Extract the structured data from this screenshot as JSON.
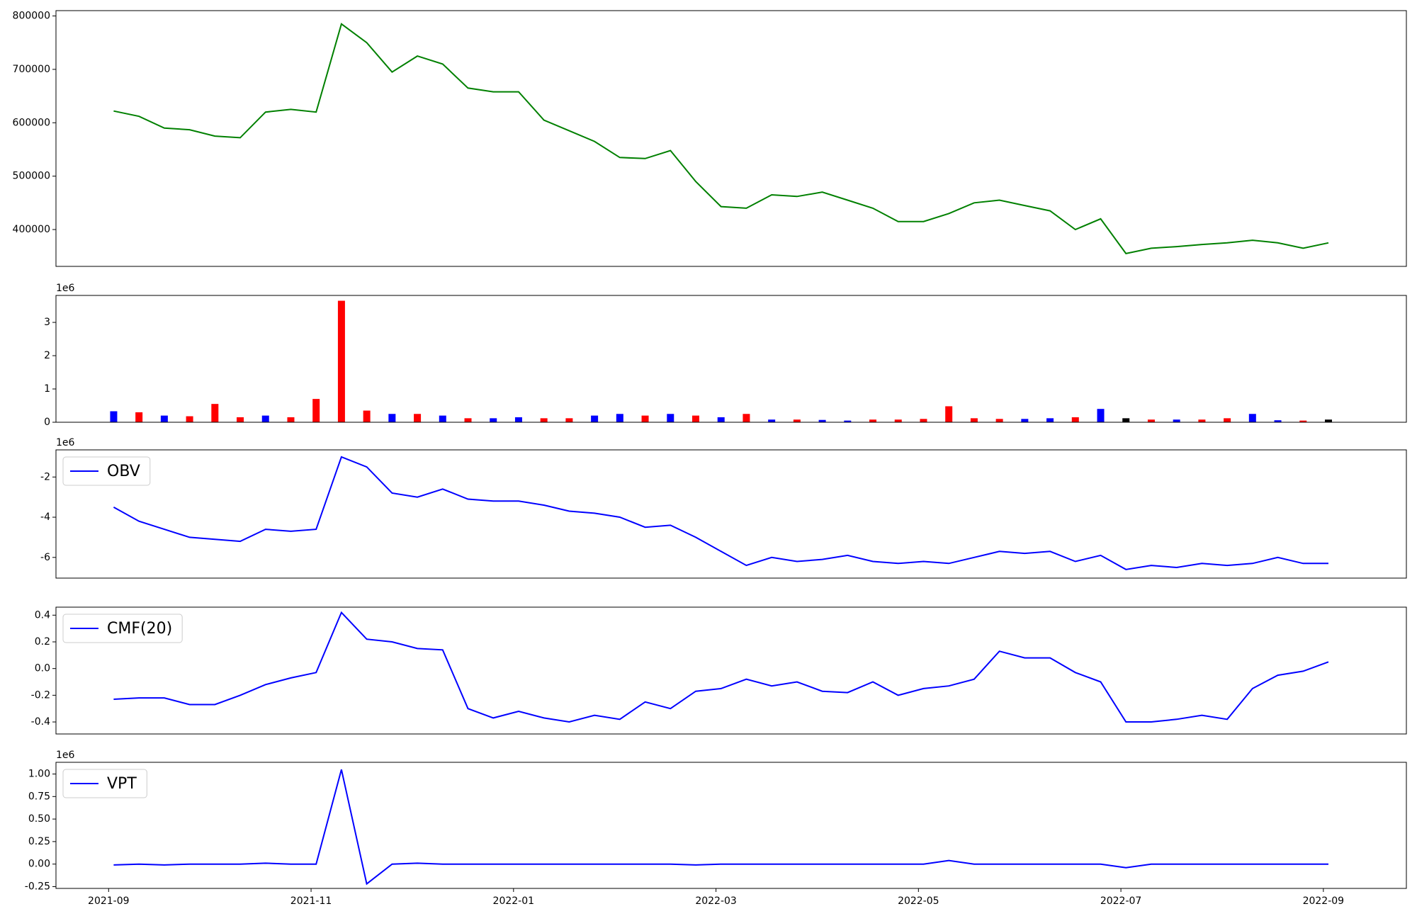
{
  "chart_data": [
    {
      "type": "line",
      "color": "#008000",
      "x": [
        0.05,
        0.3,
        0.55,
        0.8,
        1.05,
        1.3,
        1.55,
        1.8,
        2.05,
        2.3,
        2.55,
        2.8,
        3.05,
        3.3,
        3.55,
        3.8,
        4.05,
        4.3,
        4.55,
        4.8,
        5.05,
        5.3,
        5.55,
        5.8,
        6.05,
        6.3,
        6.55,
        6.8,
        7.05,
        7.3,
        7.55,
        7.8,
        8.05,
        8.3,
        8.55,
        8.8,
        9.05,
        9.3,
        9.55,
        9.8,
        10.05,
        10.3,
        10.55,
        10.8,
        11.05,
        11.3,
        11.55,
        11.8,
        12.05
      ],
      "values": [
        622000,
        612000,
        590000,
        587000,
        575000,
        572000,
        620000,
        625000,
        620000,
        785000,
        750000,
        695000,
        725000,
        710000,
        665000,
        658000,
        658000,
        605000,
        585000,
        565000,
        535000,
        533000,
        548000,
        490000,
        443000,
        440000,
        465000,
        462000,
        470000,
        455000,
        440000,
        415000,
        415000,
        430000,
        450000,
        455000,
        445000,
        435000,
        400000,
        420000,
        355000,
        365000,
        368000,
        372000,
        375000,
        380000,
        375000,
        365000,
        375000
      ],
      "xlim": [
        -0.52,
        12.82
      ],
      "ylim": [
        331000,
        810000
      ],
      "yticks": [
        400000,
        500000,
        600000,
        700000,
        800000
      ]
    },
    {
      "type": "bar",
      "y_offset_label": "1e6",
      "x": [
        0.05,
        0.3,
        0.55,
        0.8,
        1.05,
        1.3,
        1.55,
        1.8,
        2.05,
        2.3,
        2.55,
        2.8,
        3.05,
        3.3,
        3.55,
        3.8,
        4.05,
        4.3,
        4.55,
        4.8,
        5.05,
        5.3,
        5.55,
        5.8,
        6.05,
        6.3,
        6.55,
        6.8,
        7.05,
        7.3,
        7.55,
        7.8,
        8.05,
        8.3,
        8.55,
        8.8,
        9.05,
        9.3,
        9.55,
        9.8,
        10.05,
        10.3,
        10.55,
        10.8,
        11.05,
        11.3,
        11.55,
        11.8,
        12.05
      ],
      "values": [
        0.33,
        0.3,
        0.2,
        0.18,
        0.55,
        0.15,
        0.2,
        0.15,
        0.7,
        3.65,
        0.35,
        0.25,
        0.25,
        0.2,
        0.12,
        0.12,
        0.15,
        0.12,
        0.12,
        0.2,
        0.25,
        0.2,
        0.25,
        0.2,
        0.15,
        0.25,
        0.08,
        0.08,
        0.07,
        0.05,
        0.08,
        0.08,
        0.1,
        0.48,
        0.12,
        0.1,
        0.1,
        0.12,
        0.15,
        0.4,
        0.12,
        0.08,
        0.08,
        0.08,
        0.12,
        0.25,
        0.06,
        0.05,
        0.08
      ],
      "colors": [
        "#0000ff",
        "#ff0000",
        "#0000ff",
        "#ff0000",
        "#ff0000",
        "#ff0000",
        "#0000ff",
        "#ff0000",
        "#ff0000",
        "#ff0000",
        "#ff0000",
        "#0000ff",
        "#ff0000",
        "#0000ff",
        "#ff0000",
        "#0000ff",
        "#0000ff",
        "#ff0000",
        "#ff0000",
        "#0000ff",
        "#0000ff",
        "#ff0000",
        "#0000ff",
        "#ff0000",
        "#0000ff",
        "#ff0000",
        "#0000ff",
        "#ff0000",
        "#0000ff",
        "#0000ff",
        "#ff0000",
        "#ff0000",
        "#ff0000",
        "#ff0000",
        "#ff0000",
        "#ff0000",
        "#0000ff",
        "#0000ff",
        "#ff0000",
        "#0000ff",
        "#000000",
        "#ff0000",
        "#0000ff",
        "#ff0000",
        "#ff0000",
        "#0000ff",
        "#0000ff",
        "#ff0000",
        "#000000"
      ],
      "xlim": [
        -0.52,
        12.82
      ],
      "ylim": [
        0,
        3.81
      ],
      "yticks": [
        0,
        1,
        2,
        3
      ]
    },
    {
      "type": "line",
      "y_offset_label": "1e6",
      "legend": "upper left",
      "x": [
        0.05,
        0.3,
        0.55,
        0.8,
        1.05,
        1.3,
        1.55,
        1.8,
        2.05,
        2.3,
        2.55,
        2.8,
        3.05,
        3.3,
        3.55,
        3.8,
        4.05,
        4.3,
        4.55,
        4.8,
        5.05,
        5.3,
        5.55,
        5.8,
        6.05,
        6.3,
        6.55,
        6.8,
        7.05,
        7.3,
        7.55,
        7.8,
        8.05,
        8.3,
        8.55,
        8.8,
        9.05,
        9.3,
        9.55,
        9.8,
        10.05,
        10.3,
        10.55,
        10.8,
        11.05,
        11.3,
        11.55,
        11.8,
        12.05
      ],
      "series": [
        {
          "name": "OBV",
          "color": "#0000ff",
          "values": [
            -3.5,
            -4.2,
            -4.6,
            -5,
            -5.1,
            -5.2,
            -4.6,
            -4.7,
            -4.6,
            -1,
            -1.5,
            -2.8,
            -3,
            -2.6,
            -3.1,
            -3.2,
            -3.2,
            -3.4,
            -3.7,
            -3.8,
            -4,
            -4.5,
            -4.4,
            -5,
            -5.7,
            -6.4,
            -6,
            -6.2,
            -6.1,
            -5.9,
            -6.2,
            -6.3,
            -6.2,
            -6.3,
            -6,
            -5.7,
            -5.8,
            -5.7,
            -6.2,
            -5.9,
            -6.6,
            -6.4,
            -6.5,
            -6.3,
            -6.4,
            -6.3,
            -6,
            -6.3,
            -6.3
          ]
        }
      ],
      "xlim": [
        -0.52,
        12.82
      ],
      "ylim": [
        -7.03,
        -0.65
      ],
      "yticks": [
        -6,
        -4,
        -2
      ]
    },
    {
      "type": "line",
      "legend": "upper left",
      "x": [
        0.05,
        0.3,
        0.55,
        0.8,
        1.05,
        1.3,
        1.55,
        1.8,
        2.05,
        2.3,
        2.55,
        2.8,
        3.05,
        3.3,
        3.55,
        3.8,
        4.05,
        4.3,
        4.55,
        4.8,
        5.05,
        5.3,
        5.55,
        5.8,
        6.05,
        6.3,
        6.55,
        6.8,
        7.05,
        7.3,
        7.55,
        7.8,
        8.05,
        8.3,
        8.55,
        8.8,
        9.05,
        9.3,
        9.55,
        9.8,
        10.05,
        10.3,
        10.55,
        10.8,
        11.05,
        11.3,
        11.55,
        11.8,
        12.05
      ],
      "series": [
        {
          "name": "CMF(20)",
          "color": "#0000ff",
          "values": [
            -0.23,
            -0.22,
            -0.22,
            -0.27,
            -0.27,
            -0.2,
            -0.12,
            -0.07,
            -0.03,
            0.42,
            0.22,
            0.2,
            0.15,
            0.14,
            -0.3,
            -0.37,
            -0.32,
            -0.37,
            -0.4,
            -0.35,
            -0.38,
            -0.25,
            -0.3,
            -0.17,
            -0.15,
            -0.08,
            -0.13,
            -0.1,
            -0.17,
            -0.18,
            -0.1,
            -0.2,
            -0.15,
            -0.13,
            -0.08,
            0.13,
            0.08,
            0.08,
            -0.03,
            -0.1,
            -0.4,
            -0.4,
            -0.38,
            -0.35,
            -0.38,
            -0.15,
            -0.05,
            -0.02,
            0.05
          ]
        }
      ],
      "xlim": [
        -0.52,
        12.82
      ],
      "ylim": [
        -0.49,
        0.46
      ],
      "yticks": [
        -0.4,
        -0.2,
        {
          "value": 0,
          "label": "0.0"
        },
        0.2,
        0.4
      ]
    },
    {
      "type": "line",
      "y_offset_label": "1e6",
      "legend": "upper left",
      "x": [
        0.05,
        0.3,
        0.55,
        0.8,
        1.05,
        1.3,
        1.55,
        1.8,
        2.05,
        2.3,
        2.55,
        2.8,
        3.05,
        3.3,
        3.55,
        3.8,
        4.05,
        4.3,
        4.55,
        4.8,
        5.05,
        5.3,
        5.55,
        5.8,
        6.05,
        6.3,
        6.55,
        6.8,
        7.05,
        7.3,
        7.55,
        7.8,
        8.05,
        8.3,
        8.55,
        8.8,
        9.05,
        9.3,
        9.55,
        9.8,
        10.05,
        10.3,
        10.55,
        10.8,
        11.05,
        11.3,
        11.55,
        11.8,
        12.05
      ],
      "series": [
        {
          "name": "VPT",
          "color": "#0000ff",
          "values": [
            -0.01,
            0,
            -0.01,
            0,
            0,
            0,
            0.01,
            0,
            0,
            1.05,
            -0.22,
            0,
            0.01,
            0,
            0,
            0,
            0,
            0,
            0,
            0,
            0,
            0,
            0,
            -0.01,
            0,
            0,
            0,
            0,
            0,
            0,
            0,
            0,
            0,
            0.04,
            0,
            0,
            0,
            0,
            0,
            0,
            -0.04,
            0,
            0,
            0,
            0,
            0,
            0,
            0,
            0
          ]
        }
      ],
      "xlim": [
        -0.52,
        12.82
      ],
      "ylim": [
        -0.27,
        1.13
      ],
      "yticks": [
        -0.25,
        {
          "value": 0,
          "label": "0.00"
        },
        0.25,
        {
          "value": 0.5,
          "label": "0.50"
        },
        0.75,
        {
          "value": 1,
          "label": "1.00"
        }
      ],
      "xticks": [
        {
          "value": 0,
          "label": "2021-09"
        },
        {
          "value": 2,
          "label": "2021-11"
        },
        {
          "value": 4,
          "label": "2022-01"
        },
        {
          "value": 6,
          "label": "2022-03"
        },
        {
          "value": 8,
          "label": "2022-05"
        },
        {
          "value": 10,
          "label": "2022-07"
        },
        {
          "value": 12,
          "label": "2022-09"
        }
      ]
    }
  ]
}
